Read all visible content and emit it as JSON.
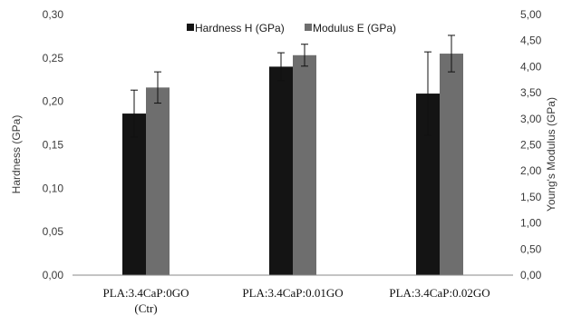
{
  "chart_data": {
    "type": "bar",
    "categories": [
      [
        "PLA:3.4CaP:0GO",
        "(Ctr)"
      ],
      [
        "PLA:3.4CaP:0.01GO"
      ],
      [
        "PLA:3.4CaP:0.02GO"
      ]
    ],
    "series": [
      {
        "name": "Hardness H (GPa)",
        "axis": "left",
        "color": "#141414",
        "values": [
          0.186,
          0.24,
          0.209
        ],
        "errors": [
          0.027,
          0.016,
          0.048
        ]
      },
      {
        "name": "Modulus E  (GPa)",
        "axis": "right",
        "color": "#6e6e6e",
        "values": [
          3.6,
          4.22,
          4.25
        ],
        "errors": [
          0.3,
          0.21,
          0.35
        ]
      }
    ],
    "ylabel": "Hardness (GPa)",
    "y2label": "Young's Modulus (GPa)",
    "ylim": [
      0,
      0.3
    ],
    "y2lim": [
      0,
      5.0
    ],
    "yticks": [
      "0,00",
      "0,05",
      "0,10",
      "0,15",
      "0,20",
      "0,25",
      "0,30"
    ],
    "y2ticks": [
      "0,00",
      "0,50",
      "1,00",
      "1,50",
      "2,00",
      "2,50",
      "3,00",
      "3,50",
      "4,00",
      "4,50",
      "5,00"
    ],
    "legend_position": "top-center",
    "grid": false
  }
}
